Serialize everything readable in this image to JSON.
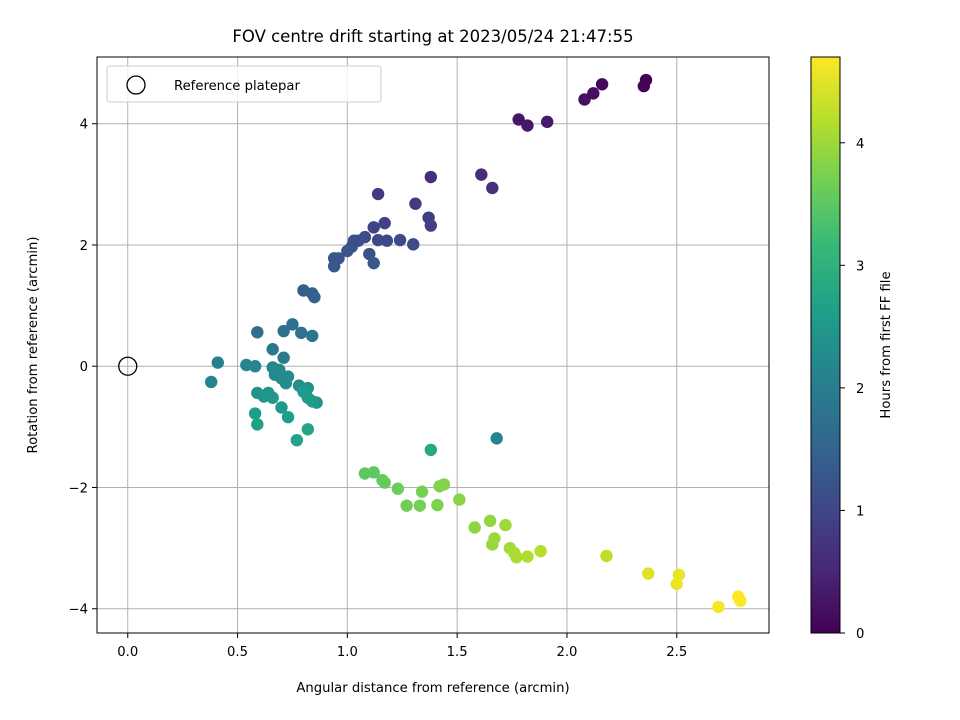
{
  "chart_data": {
    "type": "scatter",
    "title": "FOV centre drift starting at 2023/05/24 21:47:55",
    "xlabel": "Angular distance from reference (arcmin)",
    "ylabel": "Rotation from reference (arcmin)",
    "xlim": [
      -0.14,
      2.92
    ],
    "ylim": [
      -4.4,
      5.1
    ],
    "xticks": [
      0.0,
      0.5,
      1.0,
      1.5,
      2.0,
      2.5
    ],
    "xtick_labels": [
      "0.0",
      "0.5",
      "1.0",
      "1.5",
      "2.0",
      "2.5"
    ],
    "yticks": [
      -4,
      -2,
      0,
      2,
      4
    ],
    "ytick_labels": [
      "−4",
      "−2",
      "0",
      "2",
      "4"
    ],
    "grid": true,
    "legend": {
      "placement": "top-left",
      "entries": [
        "Reference platepar"
      ]
    },
    "reference_point": {
      "x": 0.0,
      "y": 0.0,
      "marker": "open-circle"
    },
    "colorbar": {
      "label": "Hours from first FF file",
      "colormap": "viridis",
      "range": [
        0,
        4.7
      ],
      "ticks": [
        0,
        1,
        2,
        3,
        4
      ],
      "tick_labels": [
        "0",
        "1",
        "2",
        "3",
        "4"
      ]
    },
    "series": [
      {
        "x": [
          2.36,
          2.35,
          2.16,
          2.12,
          2.08,
          1.78,
          1.82,
          1.91,
          1.38,
          1.61,
          1.66,
          1.14,
          1.31,
          1.37,
          1.38,
          1.17,
          1.12,
          1.14,
          1.18,
          1.24,
          1.3,
          1.08,
          1.05,
          1.03,
          1.02,
          1.1,
          1.0,
          0.96,
          0.94,
          0.94,
          1.12,
          0.8,
          0.84,
          0.85,
          0.59,
          0.75,
          0.71,
          0.79,
          0.84,
          0.66,
          0.71,
          0.41,
          0.38,
          0.54,
          0.58,
          0.66,
          0.69,
          0.67,
          0.7,
          0.72,
          0.73,
          0.78,
          0.8,
          0.82,
          0.86,
          0.59,
          0.62,
          0.64,
          0.66,
          0.7,
          0.8,
          0.82,
          0.84,
          0.58,
          0.73,
          0.59,
          0.77,
          0.82,
          1.38,
          1.68,
          1.08,
          1.12,
          1.16,
          1.17,
          1.23,
          1.27,
          1.33,
          1.34,
          1.41,
          1.42,
          1.44,
          1.51,
          1.58,
          1.65,
          1.66,
          1.67,
          1.72,
          1.74,
          1.76,
          1.77,
          1.82,
          1.88,
          2.18,
          2.37,
          2.51,
          2.5,
          2.69,
          2.79,
          2.78
        ],
        "y": [
          4.72,
          4.62,
          4.65,
          4.5,
          4.4,
          4.07,
          3.97,
          4.03,
          3.12,
          3.16,
          2.94,
          2.84,
          2.68,
          2.45,
          2.32,
          2.36,
          2.29,
          2.08,
          2.07,
          2.08,
          2.01,
          2.13,
          2.07,
          2.07,
          1.97,
          1.85,
          1.9,
          1.78,
          1.78,
          1.65,
          1.7,
          1.25,
          1.2,
          1.14,
          0.56,
          0.69,
          0.58,
          0.55,
          0.5,
          0.28,
          0.14,
          0.06,
          -0.26,
          0.02,
          0.0,
          -0.02,
          -0.06,
          -0.14,
          -0.2,
          -0.28,
          -0.17,
          -0.32,
          -0.4,
          -0.36,
          -0.6,
          -0.44,
          -0.5,
          -0.44,
          -0.52,
          -0.68,
          -0.42,
          -0.52,
          -0.58,
          -0.78,
          -0.84,
          -0.96,
          -1.22,
          -1.04,
          -1.38,
          -1.19,
          -1.77,
          -1.75,
          -1.88,
          -1.92,
          -2.02,
          -2.3,
          -2.3,
          -2.07,
          -2.29,
          -1.98,
          -1.95,
          -2.2,
          -2.66,
          -2.55,
          -2.94,
          -2.84,
          -2.62,
          -3.0,
          -3.08,
          -3.15,
          -3.14,
          -3.05,
          -3.13,
          -3.42,
          -3.44,
          -3.59,
          -3.97,
          -3.87,
          -3.8
        ],
        "hours": [
          0.0,
          0.04,
          0.11,
          0.17,
          0.21,
          0.28,
          0.31,
          0.35,
          0.6,
          0.62,
          0.68,
          0.8,
          0.82,
          0.86,
          0.88,
          0.93,
          0.96,
          1.03,
          1.04,
          1.06,
          1.09,
          1.12,
          1.14,
          1.15,
          1.17,
          1.19,
          1.21,
          1.24,
          1.26,
          1.28,
          1.3,
          1.4,
          1.43,
          1.45,
          1.68,
          1.72,
          1.75,
          1.77,
          1.79,
          1.86,
          1.92,
          2.02,
          2.12,
          2.13,
          2.17,
          2.18,
          2.2,
          2.23,
          2.26,
          2.28,
          2.29,
          2.31,
          2.34,
          2.36,
          2.38,
          2.41,
          2.43,
          2.45,
          2.48,
          2.51,
          2.54,
          2.56,
          2.58,
          2.61,
          2.62,
          2.65,
          2.7,
          2.75,
          2.8,
          2.18,
          3.5,
          3.52,
          3.55,
          3.58,
          3.62,
          3.66,
          3.69,
          3.72,
          3.76,
          3.79,
          3.82,
          3.86,
          3.89,
          3.92,
          3.95,
          3.98,
          4.01,
          4.05,
          4.08,
          4.11,
          4.15,
          4.18,
          4.24,
          4.48,
          4.55,
          4.58,
          4.64,
          4.68,
          4.7
        ]
      }
    ]
  }
}
